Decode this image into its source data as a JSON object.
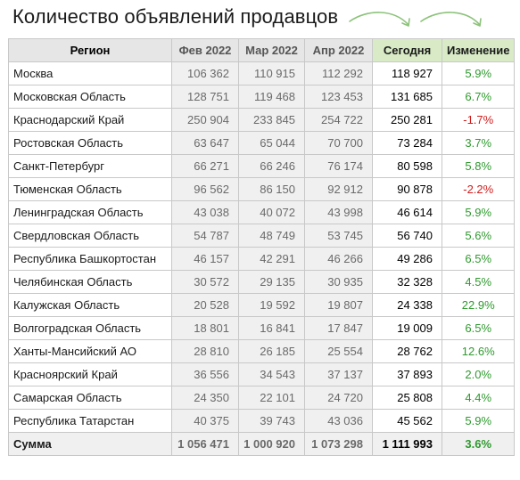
{
  "title": "Количество объявлений продавцов",
  "header": {
    "region": "Регион",
    "feb": "Фев 2022",
    "mar": "Мар 2022",
    "apr": "Апр 2022",
    "today": "Сегодня",
    "change": "Изменение"
  },
  "rows": [
    {
      "region": "Москва",
      "feb": "106 362",
      "mar": "110 915",
      "apr": "112 292",
      "today": "118 927",
      "change": "5.9%"
    },
    {
      "region": "Московская Область",
      "feb": "128 751",
      "mar": "119 468",
      "apr": "123 453",
      "today": "131 685",
      "change": "6.7%"
    },
    {
      "region": "Краснодарский Край",
      "feb": "250 904",
      "mar": "233 845",
      "apr": "254 722",
      "today": "250 281",
      "change": "-1.7%"
    },
    {
      "region": "Ростовская Область",
      "feb": "63 647",
      "mar": "65 044",
      "apr": "70 700",
      "today": "73 284",
      "change": "3.7%"
    },
    {
      "region": "Санкт-Петербург",
      "feb": "66 271",
      "mar": "66 246",
      "apr": "76 174",
      "today": "80 598",
      "change": "5.8%"
    },
    {
      "region": "Тюменская Область",
      "feb": "96 562",
      "mar": "86 150",
      "apr": "92 912",
      "today": "90 878",
      "change": "-2.2%"
    },
    {
      "region": "Ленинградская Область",
      "feb": "43 038",
      "mar": "40 072",
      "apr": "43 998",
      "today": "46 614",
      "change": "5.9%"
    },
    {
      "region": "Свердловская Область",
      "feb": "54 787",
      "mar": "48 749",
      "apr": "53 745",
      "today": "56 740",
      "change": "5.6%"
    },
    {
      "region": "Республика Башкортостан",
      "feb": "46 157",
      "mar": "42 291",
      "apr": "46 266",
      "today": "49 286",
      "change": "6.5%"
    },
    {
      "region": "Челябинская Область",
      "feb": "30 572",
      "mar": "29 135",
      "apr": "30 935",
      "today": "32 328",
      "change": "4.5%"
    },
    {
      "region": "Калужская Область",
      "feb": "20 528",
      "mar": "19 592",
      "apr": "19 807",
      "today": "24 338",
      "change": "22.9%"
    },
    {
      "region": "Волгоградская Область",
      "feb": "18 801",
      "mar": "16 841",
      "apr": "17 847",
      "today": "19 009",
      "change": "6.5%"
    },
    {
      "region": "Ханты-Мансийский АО",
      "feb": "28 810",
      "mar": "26 185",
      "apr": "25 554",
      "today": "28 762",
      "change": "12.6%"
    },
    {
      "region": "Красноярский Край",
      "feb": "36 556",
      "mar": "34 543",
      "apr": "37 137",
      "today": "37 893",
      "change": "2.0%"
    },
    {
      "region": "Самарская Область",
      "feb": "24 350",
      "mar": "22 101",
      "apr": "24 720",
      "today": "25 808",
      "change": "4.4%"
    },
    {
      "region": "Республика Татарстан",
      "feb": "40 375",
      "mar": "39 743",
      "apr": "43 036",
      "today": "45 562",
      "change": "5.9%"
    }
  ],
  "total": {
    "region": "Сумма",
    "feb": "1 056 471",
    "mar": "1 000 920",
    "apr": "1 073 298",
    "today": "1 111 993",
    "change": "3.6%"
  },
  "colors": {
    "header_gray": "#e6e6e6",
    "header_green": "#d8ebc6",
    "positive": "#2e9a2e",
    "negative": "#d21c1c",
    "arrow": "#8cc27a"
  },
  "icons": [
    "curved-arrow-icon",
    "curved-arrow-icon"
  ]
}
